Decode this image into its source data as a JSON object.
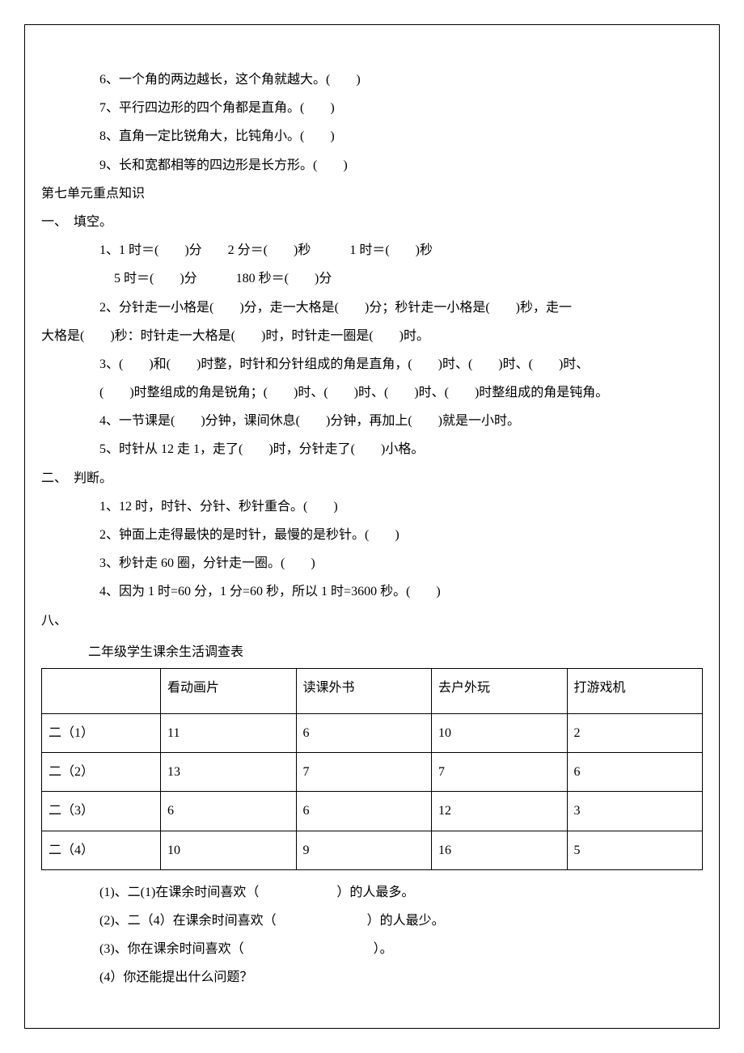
{
  "lines": {
    "l1": "6、一个角的两边越长，这个角就越大。(　　)",
    "l2": "7、平行四边形的四个角都是直角。(　　)",
    "l3": "8、直角一定比锐角大，比钝角小。(　　)",
    "l4": "9、长和宽都相等的四边形是长方形。(　　)",
    "unit7": "第七单元重点知识",
    "sec1": "一、　填空。",
    "l5": "1、1 时＝(　　)分　　2 分＝(　　)秒　　　1 时＝(　　)秒",
    "l6": "5 时＝(　　)分　　　180 秒＝(　　)分",
    "l7": "2、分针走一小格是(　　)分，走一大格是(　　)分；秒针走一小格是(　　)秒，走一",
    "l7b": "大格是(　　)秒：时针走一大格是(　　)时，时针走一圈是(　　)时。",
    "l8": "3、(　　)和(　　)时整，时针和分针组成的角是直角，(　　)时、(　　)时、(　　)时、",
    "l8b": "(　　)时整组成的角是锐角；(　　)时、(　　)时、(　　)时、(　　)时整组成的角是钝角。",
    "l9": "4、一节课是(　　)分钟，课间休息(　　)分钟，再加上(　　)就是一小时。",
    "l10": "5、时针从 12 走 1，走了(　　)时，分针走了(　　)小格。",
    "sec2": "二、　判断。",
    "l11": "1、12 时，时针、分针、秒针重合。(　　)",
    "l12": "2、钟面上走得最快的是时针，最慢的是秒针。(　　)",
    "l13": "3、秒针走 60 圈，分针走一圈。(　　)",
    "l14": "4、因为 1 时=60 分，1 分=60 秒，所以 1 时=3600 秒。(　　)",
    "sec8": "八、",
    "tableTitle": "二年级学生课余生活调查表",
    "q1": "(1)、二(1)在课余时间喜欢（　　　　　　）的人最多。",
    "q2": "(2)、二（4）在课余时间喜欢（　　　　　　　）的人最少。",
    "q3": "(3)、你在课余时间喜欢（　　　　　　　　　　）。",
    "q4": "(4）你还能提出什么问题？"
  },
  "table": {
    "columns": [
      "",
      "看动画片",
      "读课外书",
      "去户外玩",
      "打游戏机"
    ],
    "rows": [
      [
        "二（1）",
        "11",
        "6",
        "10",
        "2"
      ],
      [
        "二（2）",
        "13",
        "7",
        "7",
        "6"
      ],
      [
        "二（3）",
        "6",
        "6",
        "12",
        "3"
      ],
      [
        "二（4）",
        "10",
        "9",
        "16",
        "5"
      ]
    ]
  }
}
